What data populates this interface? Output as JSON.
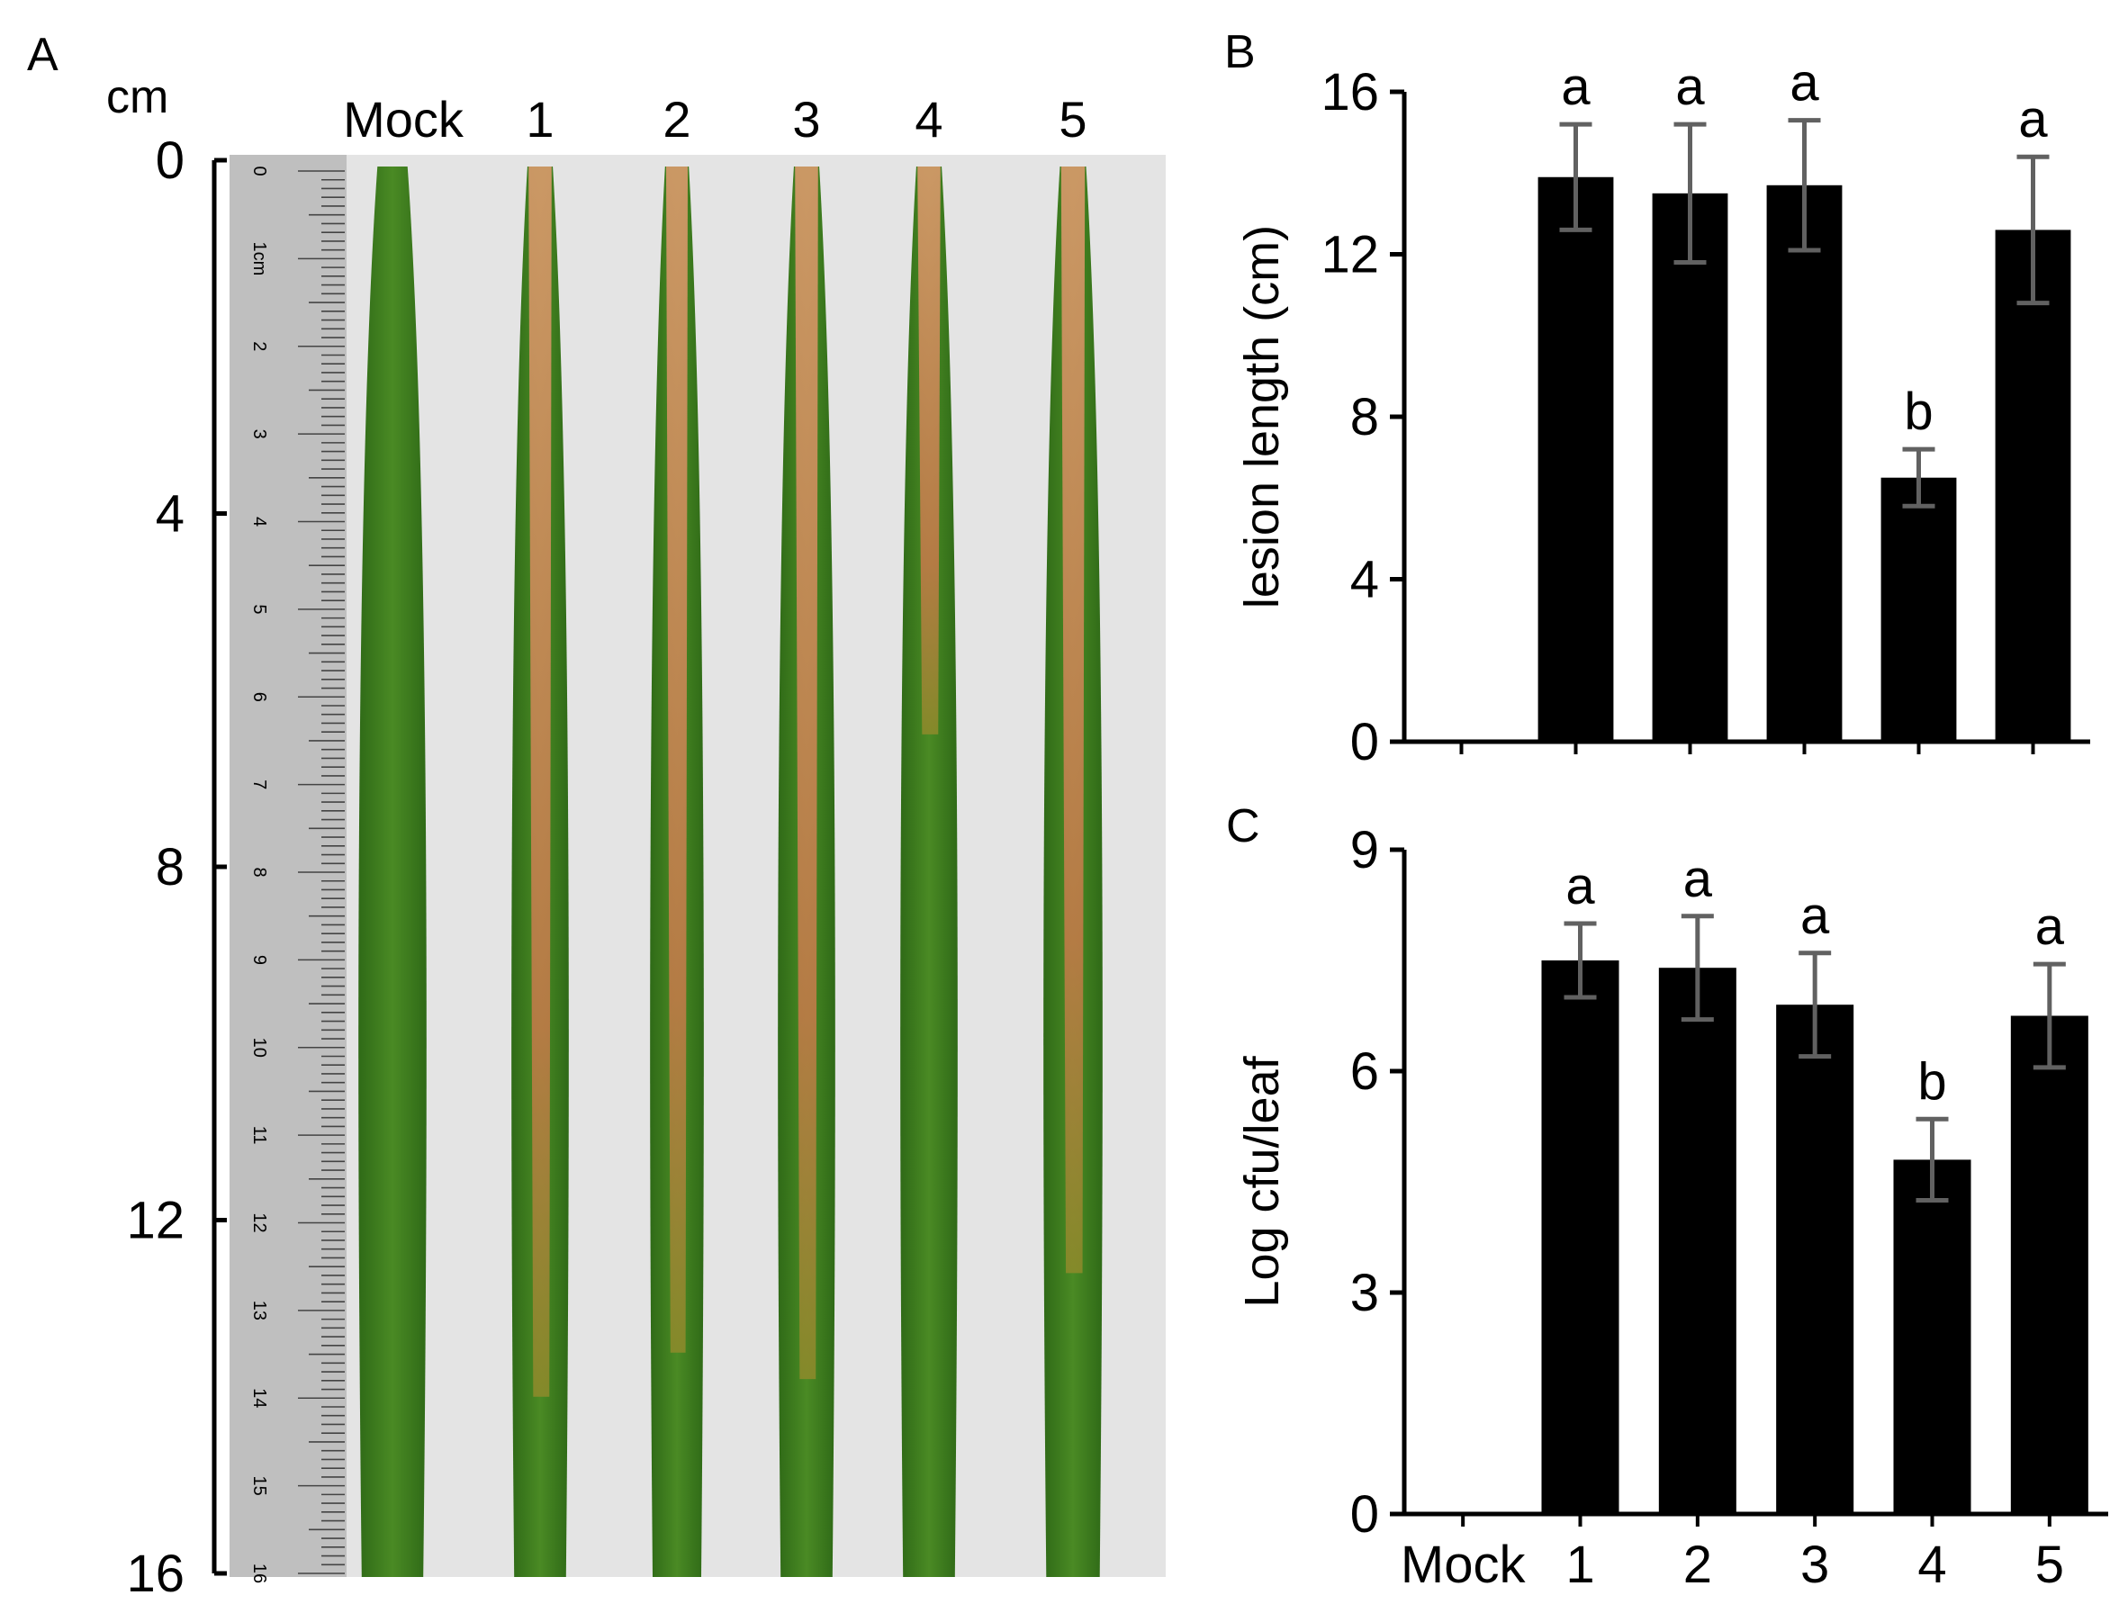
{
  "panels": {
    "a": "A",
    "b": "B",
    "c": "C"
  },
  "photo": {
    "unit_label": "cm",
    "column_labels": [
      "Mock",
      "1",
      "2",
      "3",
      "4",
      "5"
    ],
    "scale_ticks": [
      "0",
      "4",
      "8",
      "12",
      "16"
    ],
    "scale_range": [
      0,
      16
    ],
    "ruler_labels": [
      "0",
      "1cm",
      "2",
      "3",
      "4",
      "5",
      "6",
      "7",
      "8",
      "9",
      "10",
      "11",
      "12",
      "13",
      "14",
      "15",
      "16"
    ],
    "leaves": [
      {
        "label": "Mock",
        "lesion_cm": 0
      },
      {
        "label": "1",
        "lesion_cm": 14
      },
      {
        "label": "2",
        "lesion_cm": 13.5
      },
      {
        "label": "3",
        "lesion_cm": 13.8
      },
      {
        "label": "4",
        "lesion_cm": 6.5
      },
      {
        "label": "5",
        "lesion_cm": 12.6
      }
    ],
    "colors": {
      "leaf_green": "#3f7f1f",
      "lesion": "#c8865a",
      "background": "#e6e6e6",
      "ruler": "#bdbdbd"
    }
  },
  "chart_data": [
    {
      "type": "bar",
      "panel": "B",
      "categories": [
        "Mock",
        "1",
        "2",
        "3",
        "4",
        "5"
      ],
      "values": [
        0,
        13.9,
        13.5,
        13.7,
        6.5,
        12.6
      ],
      "errors": [
        0,
        1.3,
        1.7,
        1.6,
        0.7,
        1.8
      ],
      "significance": [
        "",
        "a",
        "a",
        "a",
        "b",
        "a"
      ],
      "ylabel": "lesion length (cm)",
      "xlabel": "",
      "ylim": [
        0,
        16
      ],
      "yticks": [
        "0",
        "4",
        "8",
        "12",
        "16"
      ],
      "bar_color": "#000000",
      "error_color": "#616161"
    },
    {
      "type": "bar",
      "panel": "C",
      "categories": [
        "Mock",
        "1",
        "2",
        "3",
        "4",
        "5"
      ],
      "values": [
        0,
        7.5,
        7.4,
        6.9,
        4.8,
        6.75
      ],
      "errors": [
        0,
        0.5,
        0.7,
        0.7,
        0.55,
        0.7
      ],
      "significance": [
        "",
        "a",
        "a",
        "a",
        "b",
        "a"
      ],
      "ylabel": "Log cfu/leaf",
      "xlabel": "",
      "ylim": [
        0,
        9
      ],
      "yticks": [
        "0",
        "3",
        "6",
        "9"
      ],
      "bar_color": "#000000",
      "error_color": "#616161"
    }
  ]
}
